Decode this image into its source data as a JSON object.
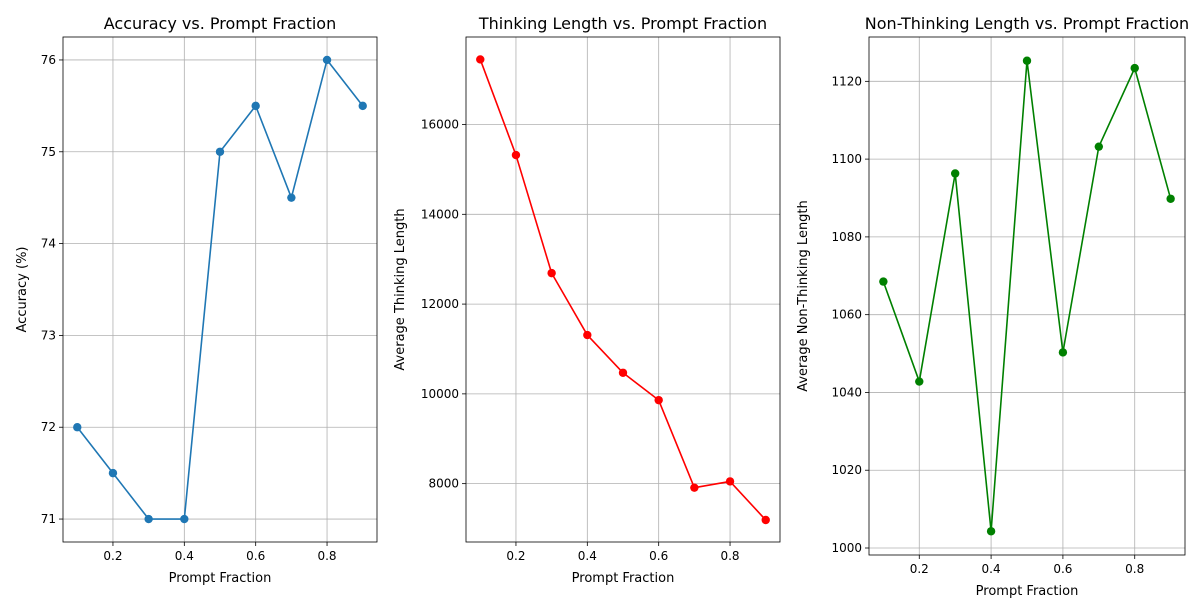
{
  "chart_data": [
    {
      "type": "line",
      "title": "Accuracy vs. Prompt Fraction",
      "xlabel": "Prompt Fraction",
      "ylabel": "Accuracy (%)",
      "color": "#1f77b4",
      "x": [
        0.1,
        0.2,
        0.3,
        0.4,
        0.5,
        0.6,
        0.7,
        0.8,
        0.9
      ],
      "values": [
        72.0,
        71.5,
        71.0,
        71.0,
        75.0,
        75.5,
        74.5,
        76.0,
        75.5
      ],
      "xlim": [
        0.06,
        0.94
      ],
      "ylim": [
        70.75,
        76.25
      ],
      "xticks": [
        0.2,
        0.4,
        0.6,
        0.8
      ],
      "xtick_labels": [
        "0.2",
        "0.4",
        "0.6",
        "0.8"
      ],
      "yticks": [
        71,
        72,
        73,
        74,
        75,
        76
      ],
      "ytick_labels": [
        "71",
        "72",
        "73",
        "74",
        "75",
        "76"
      ],
      "grid": true
    },
    {
      "type": "line",
      "title": "Thinking Length vs. Prompt Fraction",
      "xlabel": "Prompt Fraction",
      "ylabel": "Average Thinking Length",
      "color": "#ff0000",
      "x": [
        0.1,
        0.2,
        0.3,
        0.4,
        0.5,
        0.6,
        0.7,
        0.8,
        0.9
      ],
      "values": [
        17450,
        15320,
        12690,
        11310,
        10470,
        9860,
        7910,
        8050,
        7190
      ],
      "xlim": [
        0.06,
        0.94
      ],
      "ylim": [
        6700,
        17950
      ],
      "xticks": [
        0.2,
        0.4,
        0.6,
        0.8
      ],
      "xtick_labels": [
        "0.2",
        "0.4",
        "0.6",
        "0.8"
      ],
      "yticks": [
        8000,
        10000,
        12000,
        14000,
        16000
      ],
      "ytick_labels": [
        "8000",
        "10000",
        "12000",
        "14000",
        "16000"
      ],
      "grid": true
    },
    {
      "type": "line",
      "title": "Non-Thinking Length vs. Prompt Fraction",
      "xlabel": "Prompt Fraction",
      "ylabel": "Average Non-Thinking Length",
      "color": "#008000",
      "x": [
        0.1,
        0.2,
        0.3,
        0.4,
        0.5,
        0.6,
        0.7,
        0.8,
        0.9
      ],
      "values": [
        1068.5,
        1042.8,
        1096.3,
        1004.3,
        1125.3,
        1050.3,
        1103.2,
        1123.4,
        1089.8
      ],
      "xlim": [
        0.06,
        0.94
      ],
      "ylim": [
        998.2,
        1131.4
      ],
      "xticks": [
        0.2,
        0.4,
        0.6,
        0.8
      ],
      "xtick_labels": [
        "0.2",
        "0.4",
        "0.6",
        "0.8"
      ],
      "yticks": [
        1000,
        1020,
        1040,
        1060,
        1080,
        1100,
        1120
      ],
      "ytick_labels": [
        "1000",
        "1020",
        "1040",
        "1060",
        "1080",
        "1100",
        "1120"
      ],
      "grid": true
    }
  ]
}
